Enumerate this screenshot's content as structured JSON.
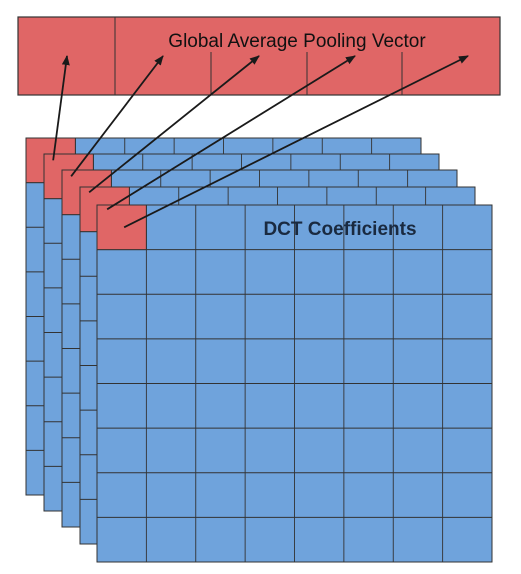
{
  "vector": {
    "label": "Global Average Pooling Vector",
    "cell_count": 5,
    "fill_color": "#e06666"
  },
  "stack": {
    "label": "DCT Coefficients",
    "layer_count": 5,
    "grid_size": 8,
    "cell_color": "#6fa3dc",
    "highlight_color": "#e06666"
  },
  "arrows": {
    "color": "#1a1a1a",
    "count": 5
  }
}
